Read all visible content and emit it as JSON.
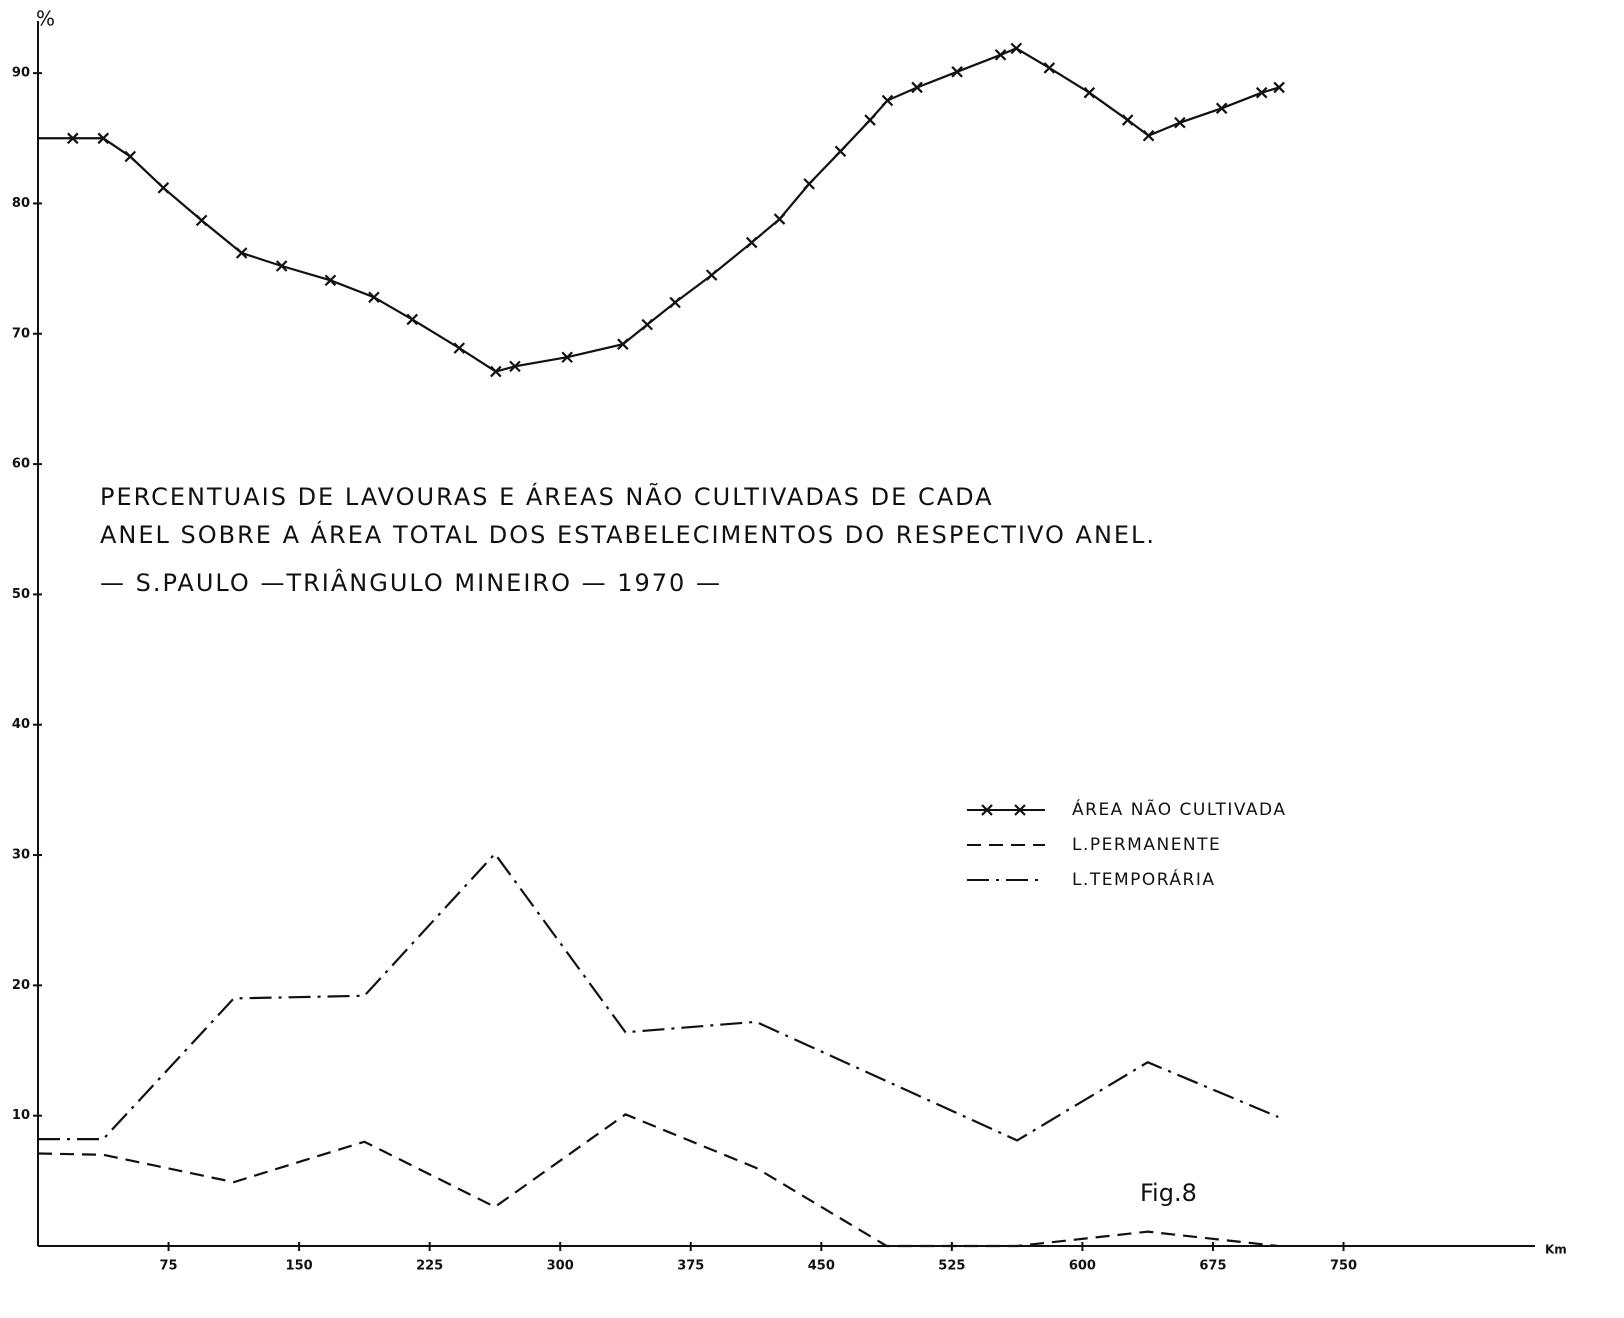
{
  "chart_data": {
    "type": "line",
    "title_lines": [
      "PERCENTUAIS DE LAVOURAS E ÁREAS NÃO CULTIVADAS DE CADA",
      "ANEL SOBRE A ÁREA TOTAL DOS ESTABELECIMENTOS DO RESPECTIVO ANEL."
    ],
    "subtitle": "— S.PAULO —TRIÂNGULO MINEIRO — 1970 —",
    "annotation": "Fig.8",
    "y_label": "%",
    "x_label": "Km",
    "xlim": [
      0,
      860
    ],
    "xticks": [
      75,
      150,
      225,
      300,
      375,
      450,
      525,
      600,
      675,
      750
    ],
    "ylim": [
      0,
      94
    ],
    "yticks": [
      10,
      20,
      30,
      40,
      50,
      60,
      70,
      80,
      90
    ],
    "grid": false,
    "legend_symbols": [
      "—x—x—",
      "— — — —",
      "—·—·—"
    ],
    "series": [
      {
        "name": "ÁREA NÃO CULTIVADA",
        "color": "#111111",
        "style": "cross",
        "x": [
          0,
          20,
          37.5,
          53,
          72,
          94,
          117,
          140,
          168,
          193,
          215,
          242,
          263,
          274,
          304,
          336,
          350,
          366,
          387,
          410,
          426,
          443,
          461,
          478,
          488,
          505,
          528,
          553,
          562,
          581,
          604,
          626,
          638,
          656,
          680,
          703,
          713
        ],
        "values": [
          85,
          85,
          85,
          83.6,
          81.2,
          78.7,
          76.2,
          75.2,
          74.1,
          72.8,
          71.1,
          68.9,
          67.1,
          67.5,
          68.2,
          69.2,
          70.7,
          72.4,
          74.5,
          77,
          78.8,
          81.5,
          84,
          86.4,
          87.9,
          88.9,
          90.1,
          91.4,
          91.9,
          90.4,
          88.5,
          86.4,
          85.2,
          86.2,
          87.3,
          88.5,
          88.9
        ]
      },
      {
        "name": "L.PERMANENTE",
        "color": "#111111",
        "style": "dash",
        "x": [
          0,
          37.5,
          112.5,
          187.5,
          262.5,
          337.5,
          412.5,
          487.5,
          562.5,
          637.5,
          712.5
        ],
        "values": [
          7.1,
          7,
          4.9,
          8,
          3,
          10.1,
          6,
          0,
          0,
          1.1,
          0
        ]
      },
      {
        "name": "L.TEMPORÁRIA",
        "color": "#111111",
        "style": "dashdot",
        "x": [
          0,
          37.5,
          112.5,
          187.5,
          262.5,
          337.5,
          412.5,
          562.5,
          637.5,
          712.5
        ],
        "values": [
          8.2,
          8.2,
          19,
          19.2,
          30.1,
          16.4,
          17.2,
          8.1,
          14.1,
          9.9
        ]
      }
    ]
  }
}
